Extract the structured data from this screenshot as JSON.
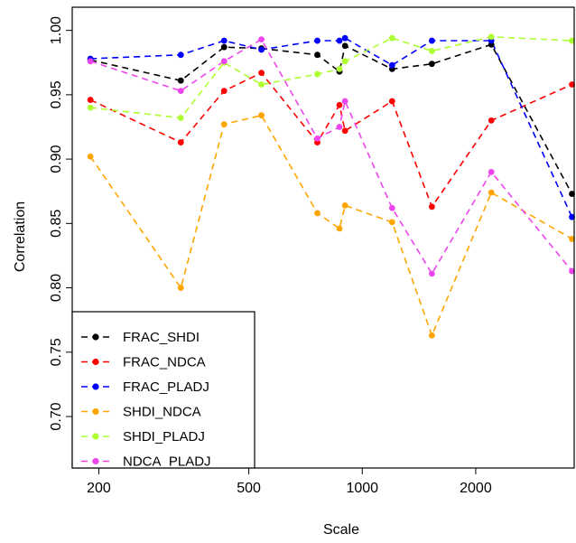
{
  "chart_data": {
    "type": "line",
    "xlabel": "Scale",
    "ylabel": "Correlation",
    "x_scale": "log",
    "xlim": [
      170,
      3650
    ],
    "ylim": [
      0.66,
      1.018
    ],
    "xticks": [
      200,
      500,
      1000,
      2000
    ],
    "xtick_labels": [
      "200",
      "500",
      "1000",
      "2000"
    ],
    "yticks": [
      0.7,
      0.75,
      0.8,
      0.85,
      0.9,
      0.95,
      1.0
    ],
    "ytick_labels": [
      "0.70",
      "0.75",
      "0.80",
      "0.85",
      "0.90",
      "0.95",
      "1.00"
    ],
    "grid": false,
    "legend_position": "bottom-left",
    "x": [
      190,
      330,
      430,
      540,
      760,
      870,
      900,
      1200,
      1530,
      2200,
      3600
    ],
    "series": [
      {
        "name": "FRAC_SHDI",
        "color": "#000000",
        "values": [
          0.977,
          0.961,
          0.987,
          0.986,
          0.981,
          0.968,
          0.988,
          0.97,
          0.974,
          0.989,
          0.873
        ]
      },
      {
        "name": "FRAC_NDCA",
        "color": "#ff0000",
        "values": [
          0.946,
          0.913,
          0.953,
          0.967,
          0.913,
          0.942,
          0.922,
          0.945,
          0.863,
          0.93,
          0.958
        ]
      },
      {
        "name": "FRAC_PLADJ",
        "color": "#0000ff",
        "values": [
          0.978,
          0.981,
          0.992,
          0.985,
          0.992,
          0.992,
          0.994,
          0.973,
          0.992,
          0.992,
          0.855
        ]
      },
      {
        "name": "SHDI_NDCA",
        "color": "#ffa500",
        "values": [
          0.902,
          0.8,
          0.927,
          0.934,
          0.858,
          0.846,
          0.864,
          0.851,
          0.763,
          0.874,
          0.838
        ]
      },
      {
        "name": "SHDI_PLADJ",
        "color": "#adff2f",
        "values": [
          0.94,
          0.932,
          0.975,
          0.958,
          0.966,
          0.97,
          0.976,
          0.994,
          0.984,
          0.995,
          0.992
        ]
      },
      {
        "name": "NDCA_PLADJ",
        "color": "#ee44ee",
        "values": [
          0.976,
          0.953,
          0.976,
          0.993,
          0.916,
          0.925,
          0.945,
          0.862,
          0.811,
          0.89,
          0.813
        ]
      }
    ]
  }
}
